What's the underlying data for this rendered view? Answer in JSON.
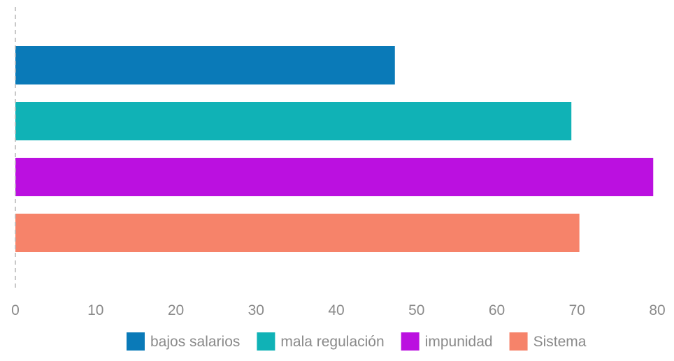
{
  "chart_data": {
    "type": "bar",
    "orientation": "horizontal",
    "x_ticks": [
      "0",
      "10",
      "20",
      "30",
      "40",
      "50",
      "60",
      "70",
      "80"
    ],
    "xlim": [
      0,
      80
    ],
    "series": [
      {
        "name": "bajos salarios",
        "value": 47.3,
        "color": "#0a7ab8"
      },
      {
        "name": "mala regulación",
        "value": 69.3,
        "color": "#10b2b6"
      },
      {
        "name": "impunidad",
        "value": 79.5,
        "color": "#bb10e0"
      },
      {
        "name": "Sistema",
        "value": 70.3,
        "color": "#f6836a"
      }
    ],
    "legend_position": "bottom",
    "grid": false,
    "zero_line": "dashed"
  }
}
